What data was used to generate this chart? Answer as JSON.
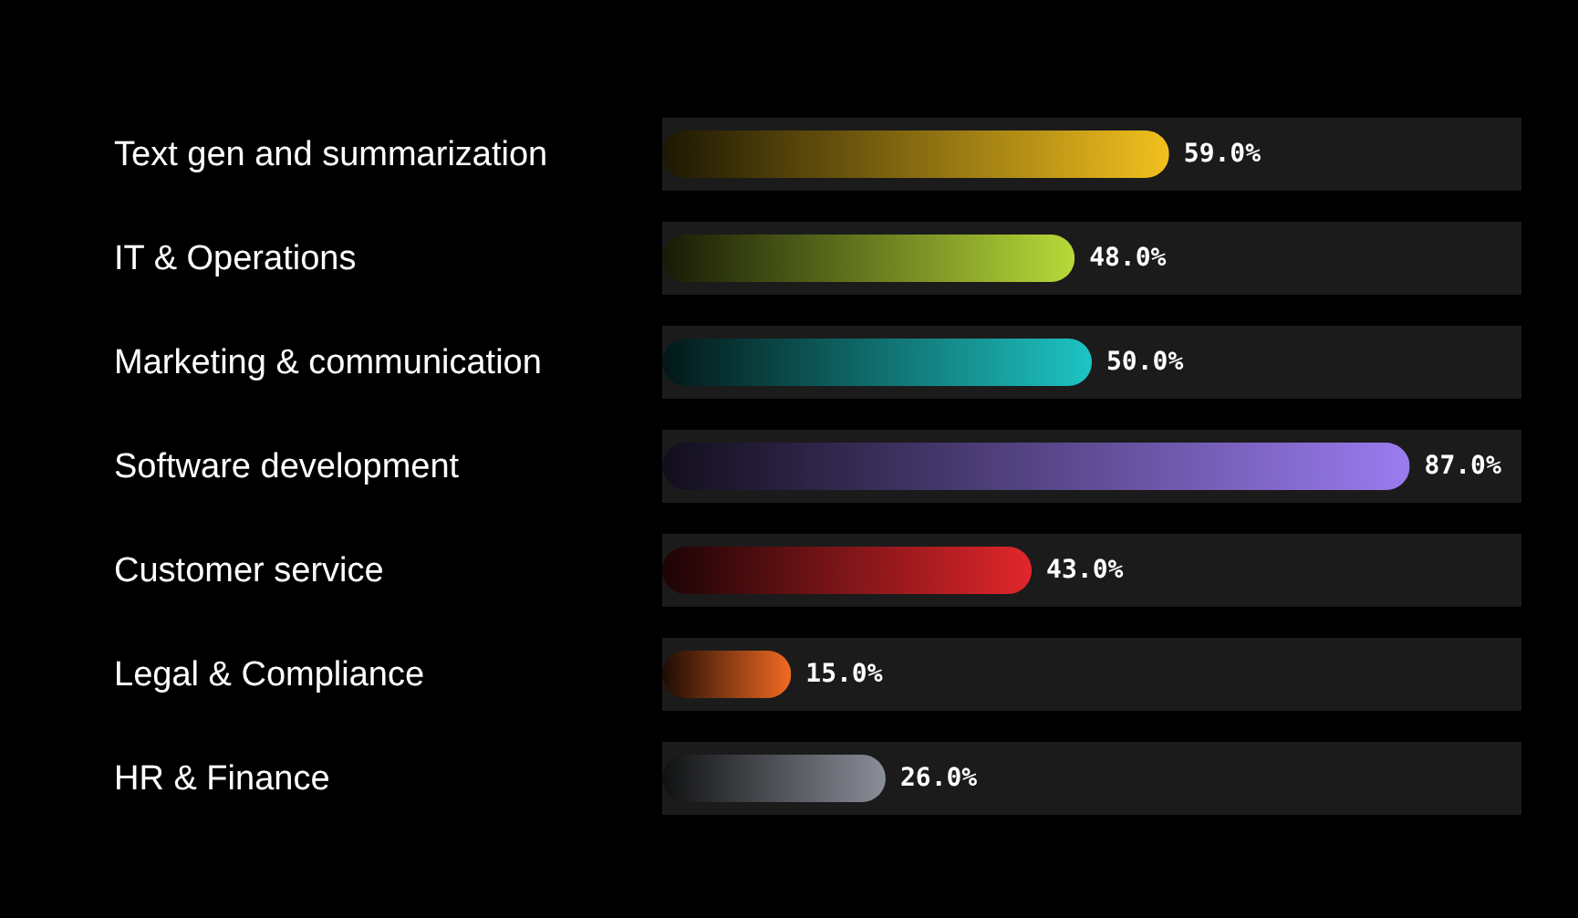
{
  "chart_data": {
    "type": "bar",
    "orientation": "horizontal",
    "categories": [
      "Text gen and summarization",
      "IT & Operations",
      "Marketing & communication",
      "Software development",
      "Customer service",
      "Legal & Compliance",
      "HR & Finance"
    ],
    "values": [
      59,
      48,
      50,
      87,
      43,
      15,
      26
    ],
    "colors": [
      "#f2c01e",
      "#b8da38",
      "#1ec4c4",
      "#9a7cf0",
      "#e2262b",
      "#f26a22",
      "#8a8e98"
    ],
    "value_labels": [
      "59.0%",
      "48.0%",
      "50.0%",
      "87.0%",
      "43.0%",
      "15.0%",
      "26.0%"
    ],
    "bands": [
      {
        "axis": "x",
        "from": 0,
        "to": 100,
        "color": "#1b1b1b"
      }
    ],
    "tick_labels": "y"
  }
}
